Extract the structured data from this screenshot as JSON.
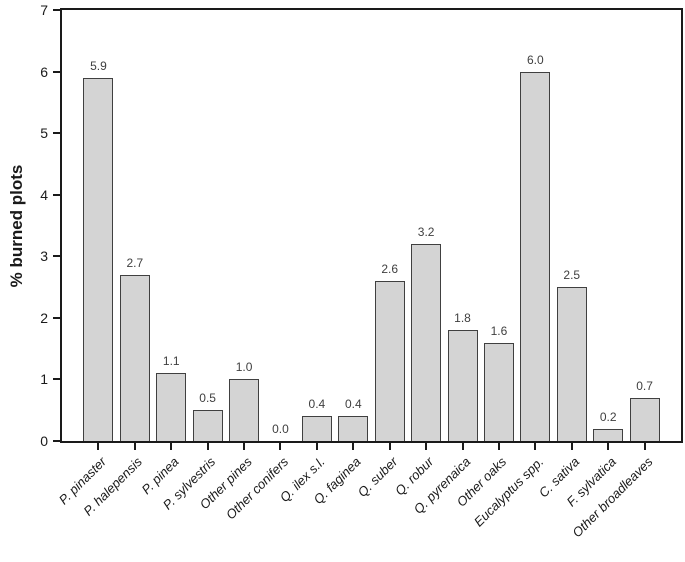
{
  "chart_data": {
    "type": "bar",
    "title": "",
    "xlabel": "",
    "ylabel": "% burned plots",
    "ylim": [
      0,
      7
    ],
    "yticks": [
      0,
      1,
      2,
      3,
      4,
      5,
      6,
      7
    ],
    "grid": false,
    "legend": "none",
    "frame": "full-box",
    "categories": [
      "P. pinaster",
      "P. halepensis",
      "P. pinea",
      "P. sylvestris",
      "Other pines",
      "Other conifers",
      "Q. ilex s.l.",
      "Q. faginea",
      "Q. suber",
      "Q. robur",
      "Q. pyrenaica",
      "Other oaks",
      "Eucalyptus spp.",
      "C. sativa",
      "F. sylvatica",
      "Other broadleaves"
    ],
    "values": [
      5.9,
      2.7,
      1.1,
      0.5,
      1.0,
      0.0,
      0.4,
      0.4,
      2.6,
      3.2,
      1.8,
      1.6,
      6.0,
      2.5,
      0.2,
      0.7
    ],
    "value_labels": [
      "5.9",
      "2.7",
      "1.1",
      "0.5",
      "1.0",
      "0.0",
      "0.4",
      "0.4",
      "2.6",
      "3.2",
      "1.8",
      "1.6",
      "6.0",
      "2.5",
      "0.2",
      "0.7"
    ],
    "colors": {
      "bar_fill": "#d4d4d4",
      "bar_border": "#404040",
      "axis": "#1a1a1a",
      "value_label_text": "#3f3f3f",
      "tick_label_text": "#1a1a1a",
      "background": "#ffffff"
    }
  }
}
